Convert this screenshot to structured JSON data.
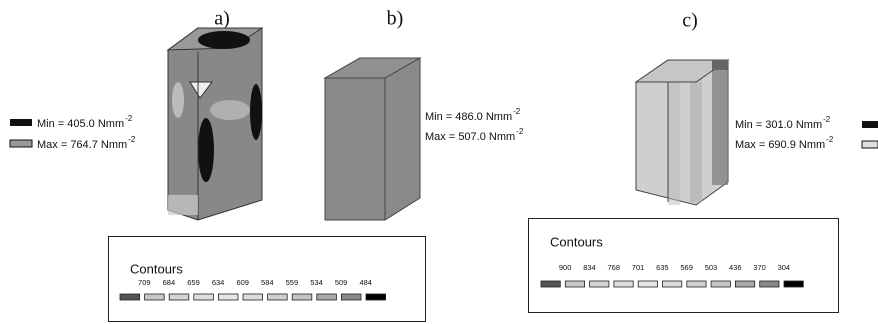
{
  "panels": [
    {
      "label": "a)",
      "min": {
        "text": "Min = 405.0 Nmm",
        "sup": "-2"
      },
      "max": {
        "text": "Max = 764.7 Nmm",
        "sup": "-2"
      }
    },
    {
      "label": "b)",
      "min": {
        "text": "Min = 486.0 Nmm",
        "sup": "-2"
      },
      "max": {
        "text": "Max = 507.0 Nmm",
        "sup": "-2"
      }
    },
    {
      "label": "c)",
      "min": {
        "text": "Min = 301.0 Nmm",
        "sup": "-2"
      },
      "max": {
        "text": "Max = 690.9 Nmm",
        "sup": "-2"
      }
    }
  ],
  "contours": [
    {
      "title": "Contours",
      "values": [
        709,
        684,
        659,
        634,
        609,
        584,
        559,
        534,
        509,
        484
      ]
    },
    {
      "title": "Contours",
      "values": [
        900,
        834,
        768,
        701,
        635,
        569,
        503,
        436,
        370,
        304
      ]
    }
  ]
}
